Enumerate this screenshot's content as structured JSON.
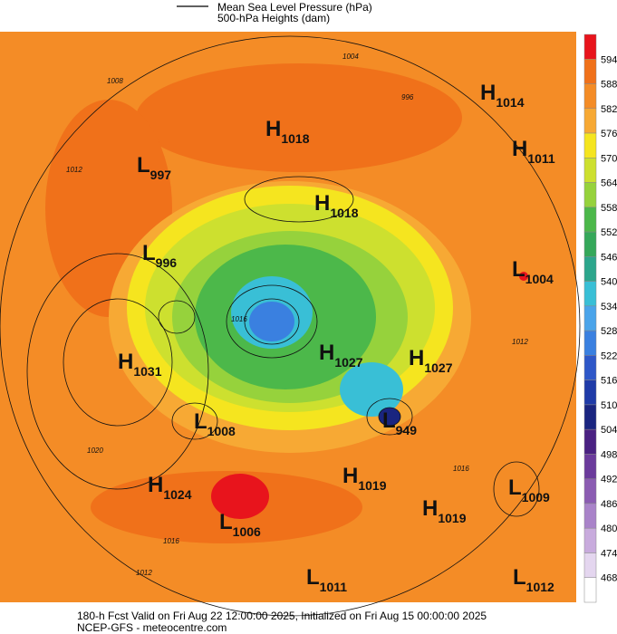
{
  "legend": {
    "lines": [
      "Mean Sea Level Pressure (hPa)",
      "500-hPa Heights (dam)"
    ]
  },
  "colorbar": {
    "labels": [
      "594",
      "588",
      "582",
      "576",
      "570",
      "564",
      "558",
      "552",
      "546",
      "540",
      "534",
      "528",
      "522",
      "516",
      "510",
      "504",
      "498",
      "492",
      "486",
      "480",
      "474",
      "468"
    ],
    "colors": [
      "#e8141c",
      "#f0711a",
      "#f48c26",
      "#f7a934",
      "#f5e51f",
      "#cde02f",
      "#96d23c",
      "#4cb84a",
      "#35a85a",
      "#2ca68c",
      "#39bfd6",
      "#4aa4ea",
      "#3a80e0",
      "#2e57c8",
      "#1f3ba8",
      "#1a2580",
      "#4a2182",
      "#6b3b9c",
      "#8b5cb2",
      "#a983c9",
      "#c8abdd",
      "#e4d6ef",
      "#ffffff"
    ]
  },
  "centers": [
    {
      "type": "H",
      "value": "1014"
    },
    {
      "type": "H",
      "value": "1011"
    },
    {
      "type": "H",
      "value": "1018"
    },
    {
      "type": "L",
      "value": "997"
    },
    {
      "type": "H",
      "value": "1018"
    },
    {
      "type": "L",
      "value": "996"
    },
    {
      "type": "L",
      "value": "1004"
    },
    {
      "type": "H",
      "value": "1031"
    },
    {
      "type": "H",
      "value": "1027"
    },
    {
      "type": "H",
      "value": "1027"
    },
    {
      "type": "L",
      "value": "1008"
    },
    {
      "type": "L",
      "value": "949"
    },
    {
      "type": "H",
      "value": "1024"
    },
    {
      "type": "H",
      "value": "1019"
    },
    {
      "type": "L",
      "value": "1009"
    },
    {
      "type": "H",
      "value": "1019"
    },
    {
      "type": "L",
      "value": "1006"
    },
    {
      "type": "L",
      "value": "1011"
    },
    {
      "type": "L",
      "value": "1012"
    }
  ],
  "contour_labels": [
    "1004",
    "996",
    "1008",
    "1012",
    "1016",
    "1016",
    "1020",
    "1012",
    "1016",
    "1012"
  ],
  "footer": {
    "lines": [
      "180-h Fcst Valid on Fri Aug 22 12:00:00 2025, Initialized on Fri Aug 15 00:00:00 2025",
      "NCEP-GFS - meteocentre.com"
    ]
  }
}
